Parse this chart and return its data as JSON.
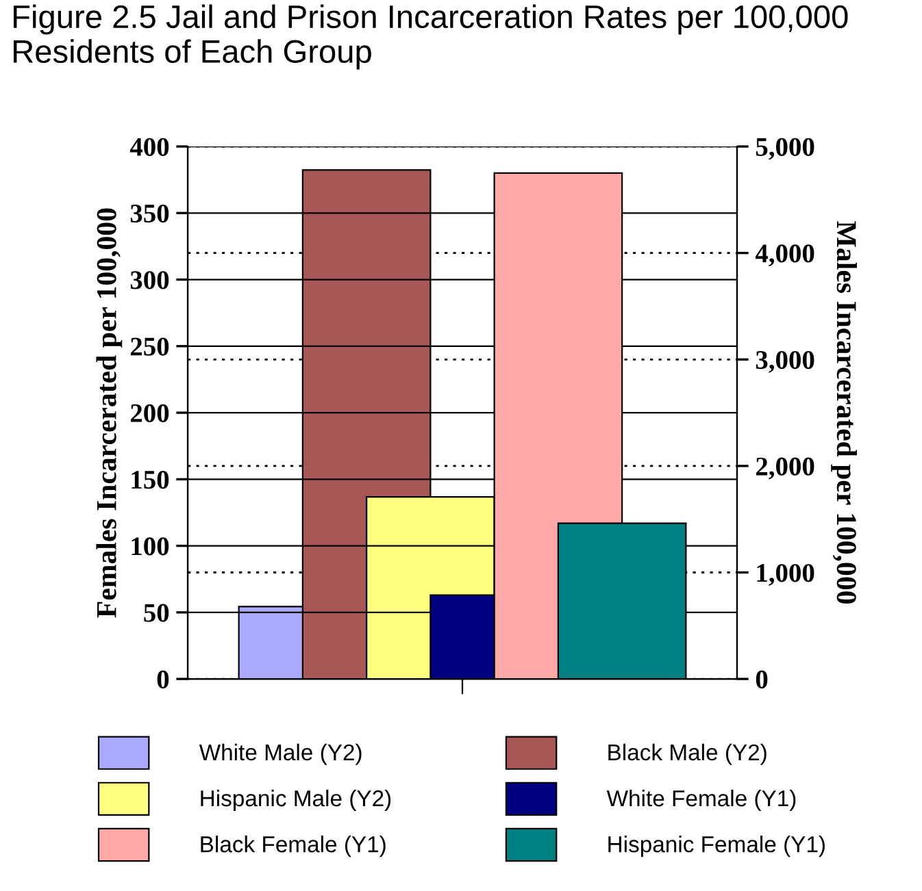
{
  "chart_data": {
    "type": "bar",
    "title": "Figure 2.5 Jail and Prison Incarceration Rates per 100,000 Residents of Each Group",
    "ylabel": "Females Incarcerated per 100,000",
    "y2label": "Males Incarcerated per 100,000",
    "categories": [
      null
    ],
    "series": [
      {
        "name": "White Male (Y2)",
        "color": "#aaaaff",
        "values": [
          680
        ],
        "axis": "y2"
      },
      {
        "name": "Black Male (Y2)",
        "color": "#a95656",
        "values": [
          4780
        ],
        "axis": "y2"
      },
      {
        "name": "Hispanic Male (Y2)",
        "color": "#ffff80",
        "values": [
          1710
        ],
        "axis": "y2"
      },
      {
        "name": "White Female (Y1)",
        "color": "#000080",
        "values": [
          63
        ]
      },
      {
        "name": "Black Female (Y1)",
        "color": "#ffa8a8",
        "values": [
          380
        ]
      },
      {
        "name": "Hispanic Female (Y1)",
        "color": "#008080",
        "values": [
          117
        ]
      }
    ],
    "ylim": [
      0,
      400
    ],
    "yticks": [
      0,
      50,
      100,
      150,
      200,
      250,
      300,
      350,
      400
    ],
    "y2lim": [
      0,
      5000
    ],
    "y2ticks": [
      {
        "value": 0,
        "label": "0"
      },
      {
        "value": 1000,
        "label": "1,000"
      },
      {
        "value": 2000,
        "label": "2,000"
      },
      {
        "value": 3000,
        "label": "3,000"
      },
      {
        "value": 4000,
        "label": "4,000"
      },
      {
        "value": 5000,
        "label": "5,000"
      }
    ],
    "grid": true,
    "legend": "bottom"
  }
}
